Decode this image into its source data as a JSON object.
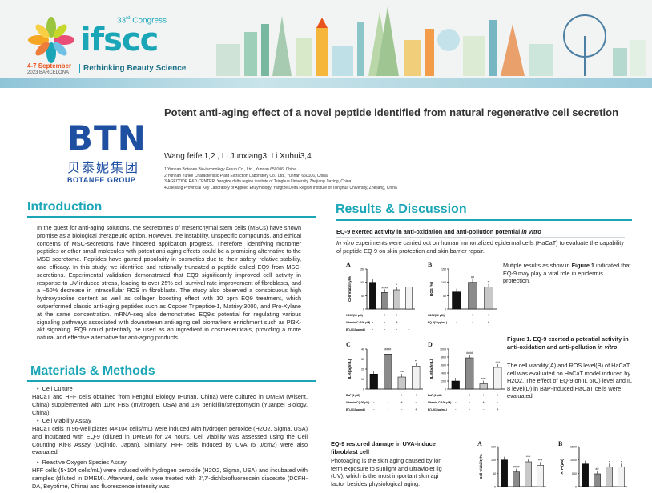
{
  "header": {
    "congress_number": "33",
    "congress_suffix": "rd",
    "congress_word": "Congress",
    "logo": "ifscc",
    "dates": "4-7 September",
    "city": "2023 BARCELONA",
    "tagline": "Rethinking Beauty Science"
  },
  "company": {
    "name": "BTN",
    "name_cn": "贝泰妮集团",
    "name_en": "BOTANEE GROUP"
  },
  "paper": {
    "title": "Potent anti-aging effect of a novel peptide identified from natural regenerative cell secretion",
    "authors": "Wang feifei1,2 , Li Junxiang3, Li Xuhui3,4",
    "affiliations": [
      "1.Yunnan Botanee Bio-technology Group Co., Ltd., Yunnan 650106, China",
      "2.Yunnan Yunke Characteristic Plant Extraction Laboratory Co., Ltd., Yunnan 650106, China",
      "3.AGECODE R&D CENTER, Yangtze delta region institute of Tsinghua University Zhejiang Jiaxing, China;",
      "4.Zhejiang Provincial Key Laboratory of Applied Enzymology, Yangtze Delta Region Institute of Tsinghua University, Zhejiang, China"
    ]
  },
  "intro": {
    "heading": "Introduction",
    "text": "In the quest for anti-aging solutions, the secretomes of mesenchymal stem cells (MSCs) have shown promise as a biological therapeutic option. However, the instability, unspecific compounds, and ethical concerns of MSC-secretions have hindered application progress. Therefore, identifying monomer peptides or other small molecules with potent anti-aging effects could be a promising alternative to the MSC secretome. Peptides have gained popularity in cosmetics due to their safety, relative stability, and efficacy. In this study, we identified and rationally truncated a peptide called EQ9 from MSC-secretions. Experimental validation demonstrated that EQ9 significantly improved cell activity in response to UV-induced stress, leading to over 25% cell survival rate improvement of fibroblasts, and a ~50% decrease in intracellular ROS in fibroblasts. The study also observed a conspicuous high hydroxyproline content as well as collagen boosting effect with 10 ppm EQ9 treatment, which outperformed classic anti-aging peptides such as Copper Tripeptide-1, Matrixyl3000, and Pro-Xylane at the same concentration. mRNA-seq also demonstrated EQ9's potential for regulating various signaling pathways associated with downstream anti-aging cell biomarkers enrichment such as PI3K-akt signaling. EQ9 could potentially be used as an ingredient in cosmeceuticals, providing a more natural and effective alternative for anti-aging products."
  },
  "methods": {
    "heading": "Materials & Methods",
    "b1": "Cell Culture",
    "t1": "HaCaT and HFF cells obtained from Fenghui Biology (Hunan, China) were cultured in DMEM (Wisent, China) supplemented with 10% FBS (Invitrogen, USA) and 1% penicillin/streptomycin (Yuanpei Biology, China).",
    "b2": "Cell Viability Assay",
    "t2": "HaCaT cells in 96-well plates (4×104 cells/mL) were induced with hydrogen peroxide (H2O2, Sigma, USA) and incubated with EQ-9 (diluted in DMEM) for 24 hours. Cell viability was assessed using the Cell Counting Kit-8 Assay (Dojindo, Japan). Similarly, HFF cells induced by UVA (5 J/cm2) were also evaluated.",
    "b3": "Reactive Oxygen Species Assay",
    "t3": "HFF cells (5×104 cells/mL) were induced with hydrogen peroxide (H2O2, Sigma, USA) and incubated with samples (diluted in DMEM). Afterward, cells were treated with 2',7'-dichlorofluorescein diacetate (DCFH-DA, Beyotime, China) and fluorescence intensity was"
  },
  "results": {
    "heading": "Results & Discussion",
    "sub1_a": "EQ-9 exerted activity in anti-oxidation and anti-pollution potential ",
    "sub1_b": "in vitro",
    "p1_a": "In vitro",
    "p1_b": " experiments were carried out on human immortalized epidermal cells (HaCaT) to evaluate the capability of peptide EQ-9 on skin protection and skin barrier repair.",
    "side_a": "Mutiple results as show in ",
    "side_b": "Figure 1",
    "side_c": " indicated that EQ-9 may play a vital role in epidermis protection.",
    "fig_title_a": "Figure 1. EQ-9 exerted a potential activity in anti-oxidation and anti-pollution ",
    "fig_title_b": "in vitro",
    "fig_desc": "The cell viability(A) and ROS level(B) of HaCaT cell was evaluated on HaCaT model induced by H2O2. The effect of EQ-9 on IL 6(C) level and IL 8 level(D) in BaP-induced HaCaT cells were evaluated.",
    "sub2a": "EQ-9 restored damage in UVA-induce",
    "sub2b": "fibroblast cell",
    "p2": [
      "Photoaging is the skin aging caused by lon",
      "term exposure to sunlight and ultraviolet lig",
      "(UV), which is the most important skin agi",
      "factor besides physiological aging."
    ]
  },
  "chart_data": [
    {
      "panel": "A",
      "type": "bar",
      "ylabel": "Cell Viability/%",
      "ylim": [
        0,
        150
      ],
      "yticks": [
        0,
        50,
        100,
        150
      ],
      "values": [
        100,
        62,
        72,
        82
      ],
      "annotations": [
        "",
        "####",
        "*",
        "*"
      ],
      "rows": [
        {
          "label": "H2O2(10 μM)",
          "marks": [
            "-",
            "+",
            "+",
            "+"
          ]
        },
        {
          "label": "Vitamin C (100 μM)",
          "marks": [
            "-",
            "-",
            "+",
            "-"
          ]
        },
        {
          "label": "EQ-9(10μg/mL)",
          "marks": [
            "-",
            "-",
            "-",
            "+"
          ]
        }
      ]
    },
    {
      "panel": "B",
      "type": "bar",
      "ylabel": "ROS (%)",
      "ylim": [
        0,
        150
      ],
      "yticks": [
        0,
        50,
        100,
        150
      ],
      "values": [
        64,
        100,
        82
      ],
      "annotations": [
        "",
        "##",
        "**"
      ],
      "rows": [
        {
          "label": "H2O2(10 μM)",
          "marks": [
            "-",
            "+",
            "+"
          ]
        },
        {
          "label": "EQ-9(10μg/mL)",
          "marks": [
            "-",
            "-",
            "+"
          ]
        }
      ]
    },
    {
      "panel": "C",
      "type": "bar",
      "ylabel": "IL-6(pg/mL)",
      "ylim": [
        0,
        40
      ],
      "yticks": [
        0,
        10,
        20,
        30,
        40
      ],
      "values": [
        15,
        35,
        12,
        23
      ],
      "annotations": [
        "",
        "####",
        "****",
        "**"
      ],
      "rows": [
        {
          "label": "BaP (1 μM)",
          "marks": [
            "-",
            "+",
            "+",
            "+"
          ]
        },
        {
          "label": "Vitamin C(100 μM)",
          "marks": [
            "-",
            "-",
            "+",
            "-"
          ]
        },
        {
          "label": "EQ-9(10μg/mL)",
          "marks": [
            "-",
            "-",
            "-",
            "+"
          ]
        }
      ]
    },
    {
      "panel": "D",
      "type": "bar",
      "ylabel": "IL-8(pg/mL)",
      "ylim": [
        0,
        1000
      ],
      "yticks": [
        0,
        200,
        400,
        600,
        800,
        1000
      ],
      "values": [
        200,
        780,
        130,
        540
      ],
      "annotations": [
        "",
        "####",
        "****",
        "****"
      ],
      "rows": [
        {
          "label": "BaP (1 μM)",
          "marks": [
            "-",
            "+",
            "+",
            "+"
          ]
        },
        {
          "label": "Vitamin C(100 μM)",
          "marks": [
            "-",
            "-",
            "+",
            "-"
          ]
        },
        {
          "label": "EQ-9(10μg/mL)",
          "marks": [
            "-",
            "-",
            "-",
            "+"
          ]
        }
      ]
    },
    {
      "panel": "A",
      "type": "bar",
      "ylabel": "Cell Viability/%",
      "ylim": [
        0,
        150
      ],
      "yticks": [
        0,
        50,
        100,
        150
      ],
      "values": [
        100,
        55,
        93,
        80
      ],
      "annotations": [
        "",
        "####",
        "****",
        "****"
      ],
      "rows": []
    },
    {
      "panel": "B",
      "type": "bar",
      "ylabel": "ATP (μM)",
      "ylim": [
        0,
        1500
      ],
      "yticks": [
        0,
        500,
        1000,
        1500
      ],
      "values": [
        850,
        480,
        740,
        740
      ],
      "annotations": [
        "",
        "##",
        "*",
        "*"
      ],
      "rows": []
    }
  ]
}
